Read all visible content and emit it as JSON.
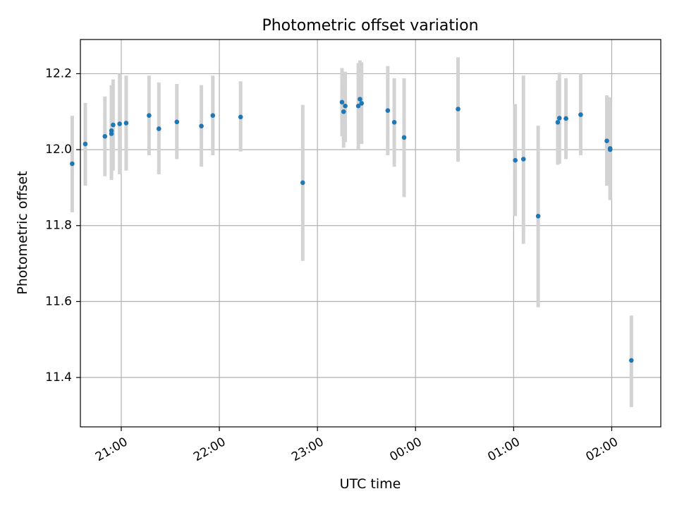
{
  "chart_data": {
    "type": "scatter",
    "title": "Photometric offset variation",
    "xlabel": "UTC time",
    "ylabel": "Photometric offset",
    "x_unit": "UTC time of day (HH:MM)",
    "xlim": [
      "20:35",
      "02:30"
    ],
    "ylim": [
      11.27,
      12.29
    ],
    "x_ticks": [
      "21:00",
      "22:00",
      "23:00",
      "00:00",
      "01:00",
      "02:00"
    ],
    "y_ticks": [
      "11.4",
      "11.6",
      "11.8",
      "12.0",
      "12.2"
    ],
    "grid": true,
    "colors": {
      "marker": "#1f77b4",
      "errorbar": "#d3d3d3",
      "grid": "#b0b0b0"
    },
    "series": [
      {
        "points": [
          {
            "t": "20:30",
            "y": 11.963,
            "lo": 11.835,
            "hi": 12.089
          },
          {
            "t": "20:38",
            "y": 12.015,
            "lo": 11.905,
            "hi": 12.123
          },
          {
            "t": "20:50",
            "y": 12.035,
            "lo": 11.93,
            "hi": 12.14
          },
          {
            "t": "20:54",
            "y": 12.042,
            "lo": 11.92,
            "hi": 12.165
          },
          {
            "t": "20:54",
            "y": 12.05,
            "lo": 11.935,
            "hi": 12.17
          },
          {
            "t": "20:55",
            "y": 12.065,
            "lo": 11.945,
            "hi": 12.185
          },
          {
            "t": "20:59",
            "y": 12.068,
            "lo": 11.935,
            "hi": 12.2
          },
          {
            "t": "21:03",
            "y": 12.07,
            "lo": 11.945,
            "hi": 12.195
          },
          {
            "t": "21:17",
            "y": 12.09,
            "lo": 11.985,
            "hi": 12.195
          },
          {
            "t": "21:23",
            "y": 12.055,
            "lo": 11.935,
            "hi": 12.177
          },
          {
            "t": "21:34",
            "y": 12.073,
            "lo": 11.975,
            "hi": 12.173
          },
          {
            "t": "21:49",
            "y": 12.062,
            "lo": 11.955,
            "hi": 12.17
          },
          {
            "t": "21:56",
            "y": 12.09,
            "lo": 11.985,
            "hi": 12.195
          },
          {
            "t": "22:13",
            "y": 12.086,
            "lo": 11.995,
            "hi": 12.18
          },
          {
            "t": "22:51",
            "y": 11.913,
            "lo": 11.707,
            "hi": 12.118
          },
          {
            "t": "23:15",
            "y": 12.125,
            "lo": 12.035,
            "hi": 12.215
          },
          {
            "t": "23:16",
            "y": 12.1,
            "lo": 12.005,
            "hi": 12.205
          },
          {
            "t": "23:17",
            "y": 12.115,
            "lo": 12.02,
            "hi": 12.205
          },
          {
            "t": "23:25",
            "y": 12.115,
            "lo": 12.0,
            "hi": 12.228
          },
          {
            "t": "23:26",
            "y": 12.133,
            "lo": 12.015,
            "hi": 12.235
          },
          {
            "t": "23:27",
            "y": 12.122,
            "lo": 12.015,
            "hi": 12.23
          },
          {
            "t": "23:43",
            "y": 12.103,
            "lo": 11.985,
            "hi": 12.22
          },
          {
            "t": "23:47",
            "y": 12.072,
            "lo": 11.955,
            "hi": 12.188
          },
          {
            "t": "23:53",
            "y": 12.032,
            "lo": 11.875,
            "hi": 12.188
          },
          {
            "t": "00:26",
            "y": 12.107,
            "lo": 11.968,
            "hi": 12.243
          },
          {
            "t": "01:01",
            "y": 11.972,
            "lo": 11.825,
            "hi": 12.12
          },
          {
            "t": "01:06",
            "y": 11.975,
            "lo": 11.752,
            "hi": 12.195
          },
          {
            "t": "01:15",
            "y": 11.825,
            "lo": 11.585,
            "hi": 12.063
          },
          {
            "t": "01:27",
            "y": 12.072,
            "lo": 11.96,
            "hi": 12.182
          },
          {
            "t": "01:28",
            "y": 12.083,
            "lo": 11.963,
            "hi": 12.203
          },
          {
            "t": "01:32",
            "y": 12.082,
            "lo": 11.975,
            "hi": 12.188
          },
          {
            "t": "01:41",
            "y": 12.092,
            "lo": 11.985,
            "hi": 12.2
          },
          {
            "t": "01:57",
            "y": 12.023,
            "lo": 11.905,
            "hi": 12.143
          },
          {
            "t": "01:59",
            "y": 12.003,
            "lo": 11.867,
            "hi": 12.138
          },
          {
            "t": "01:59",
            "y": 12.0,
            "lo": 11.88,
            "hi": 12.12
          },
          {
            "t": "02:12",
            "y": 11.445,
            "lo": 11.322,
            "hi": 11.563
          }
        ]
      }
    ]
  }
}
